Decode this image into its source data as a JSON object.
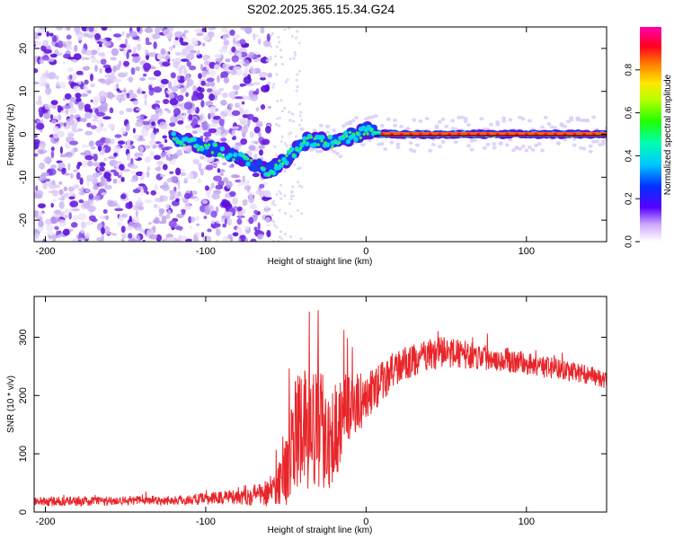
{
  "title": "S202.2025.365.15.34.G24",
  "colors": {
    "background": "#ffffff",
    "snr_line": "#e8262a",
    "spectrum_light": "#c9b3f0",
    "spectrum_dark": "#6a1be0",
    "ridge_line": "#000000"
  },
  "chart_data": [
    {
      "type": "heatmap",
      "name": "spectrogram",
      "xlabel": "Height of straight line (km)",
      "ylabel": "Frequency (Hz)",
      "xlim": [
        -207,
        150
      ],
      "ylim": [
        -25,
        25
      ],
      "xticks": [
        -200,
        -100,
        0,
        100
      ],
      "xtick_labels": [
        "-200",
        "-100",
        "0",
        "100"
      ],
      "yticks": [
        -20,
        -10,
        0,
        10,
        20
      ],
      "ytick_labels": [
        "-20",
        "-10",
        "0",
        "10",
        "20"
      ],
      "noise_region_x": [
        -207,
        -60
      ],
      "ridge": {
        "x": [
          -120,
          -110,
          -100,
          -90,
          -80,
          -70,
          -63,
          -58,
          -50,
          -45,
          -40,
          -35,
          -30,
          -25,
          -20,
          -15,
          -10,
          -5,
          0,
          5,
          10,
          20,
          40,
          60,
          80,
          100,
          120,
          140,
          150
        ],
        "y": [
          -1,
          -2,
          -3,
          -4,
          -5,
          -7,
          -8.5,
          -8,
          -6,
          -4,
          -2,
          -1.5,
          -1.5,
          -1.5,
          -1.8,
          -1.2,
          -0.5,
          0,
          1,
          0.5,
          0,
          0,
          0,
          0,
          0,
          0,
          0,
          0,
          0
        ],
        "peak_amplitude_x": [
          10,
          150
        ]
      },
      "colorbar": {
        "label": "Normalized spectral amplitude",
        "range": [
          0,
          1
        ],
        "ticks": [
          0.0,
          0.2,
          0.4,
          0.6,
          0.8
        ],
        "tick_labels": [
          "0.0",
          "0.2",
          "0.4",
          "0.6",
          "0.8"
        ],
        "colormap": "rainbow (white-violet-blue-cyan-green-yellow-red-magenta)"
      }
    },
    {
      "type": "line",
      "name": "snr",
      "xlabel": "Height of straight line (km)",
      "ylabel": "SNR (10 * v/v)",
      "xlim": [
        -207,
        150
      ],
      "ylim": [
        0,
        370
      ],
      "xticks": [
        -200,
        -100,
        0,
        100
      ],
      "xtick_labels": [
        "-200",
        "-100",
        "0",
        "100"
      ],
      "yticks": [
        0,
        100,
        200,
        300
      ],
      "ytick_labels": [
        "0",
        "100",
        "200",
        "300"
      ],
      "series": [
        {
          "name": "SNR",
          "x": [
            -207,
            -180,
            -150,
            -120,
            -100,
            -90,
            -80,
            -70,
            -60,
            -55,
            -50,
            -45,
            -40,
            -35,
            -30,
            -25,
            -20,
            -15,
            -10,
            0,
            10,
            20,
            30,
            40,
            50,
            60,
            80,
            100,
            120,
            140,
            150
          ],
          "y": [
            18,
            18,
            20,
            20,
            22,
            25,
            28,
            30,
            35,
            50,
            70,
            130,
            140,
            130,
            150,
            140,
            130,
            170,
            180,
            195,
            225,
            250,
            260,
            270,
            275,
            270,
            265,
            255,
            245,
            235,
            225
          ],
          "noise_amplitude": [
            8,
            8,
            8,
            8,
            10,
            12,
            15,
            20,
            25,
            40,
            60,
            90,
            110,
            100,
            110,
            100,
            95,
            70,
            55,
            45,
            35,
            30,
            28,
            28,
            26,
            25,
            22,
            20,
            18,
            16,
            14
          ]
        }
      ]
    }
  ]
}
